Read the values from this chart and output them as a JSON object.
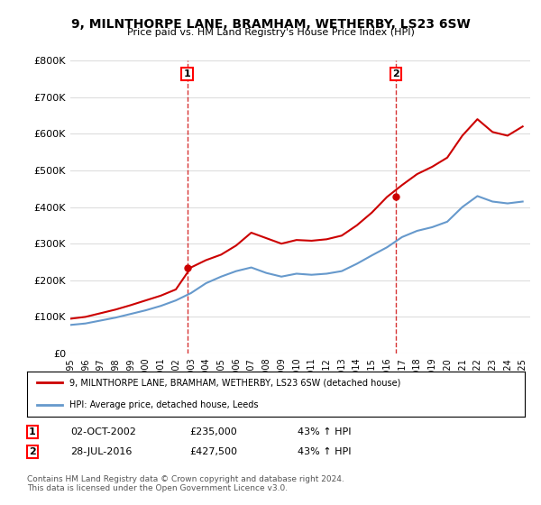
{
  "title": "9, MILNTHORPE LANE, BRAMHAM, WETHERBY, LS23 6SW",
  "subtitle": "Price paid vs. HM Land Registry's House Price Index (HPI)",
  "xlabel": "",
  "ylabel": "",
  "ylim": [
    0,
    800000
  ],
  "yticks": [
    0,
    100000,
    200000,
    300000,
    400000,
    500000,
    600000,
    700000,
    800000
  ],
  "ytick_labels": [
    "£0",
    "£100K",
    "£200K",
    "£300K",
    "£400K",
    "£500K",
    "£600K",
    "£700K",
    "£800K"
  ],
  "xlim_start": 1995.0,
  "xlim_end": 2025.5,
  "sale1_x": 2002.75,
  "sale1_y": 235000,
  "sale1_label": "1",
  "sale2_x": 2016.57,
  "sale2_y": 427500,
  "sale2_label": "2",
  "hpi_color": "#6699cc",
  "price_color": "#cc0000",
  "legend_price_label": "9, MILNTHORPE LANE, BRAMHAM, WETHERBY, LS23 6SW (detached house)",
  "legend_hpi_label": "HPI: Average price, detached house, Leeds",
  "table_row1": [
    "1",
    "02-OCT-2002",
    "£235,000",
    "43% ↑ HPI"
  ],
  "table_row2": [
    "2",
    "28-JUL-2016",
    "£427,500",
    "43% ↑ HPI"
  ],
  "footer": "Contains HM Land Registry data © Crown copyright and database right 2024.\nThis data is licensed under the Open Government Licence v3.0.",
  "bg_color": "#ffffff",
  "plot_bg_color": "#ffffff",
  "grid_color": "#dddddd",
  "hpi_years": [
    1995,
    1996,
    1997,
    1998,
    1999,
    2000,
    2001,
    2002,
    2003,
    2004,
    2005,
    2006,
    2007,
    2008,
    2009,
    2010,
    2011,
    2012,
    2013,
    2014,
    2015,
    2016,
    2017,
    2018,
    2019,
    2020,
    2021,
    2022,
    2023,
    2024,
    2025
  ],
  "hpi_values": [
    78000,
    82000,
    90000,
    98000,
    108000,
    118000,
    130000,
    145000,
    165000,
    192000,
    210000,
    225000,
    235000,
    220000,
    210000,
    218000,
    215000,
    218000,
    225000,
    245000,
    268000,
    290000,
    318000,
    335000,
    345000,
    360000,
    400000,
    430000,
    415000,
    410000,
    415000
  ],
  "price_years": [
    1995,
    1996,
    1997,
    1998,
    1999,
    2000,
    2001,
    2002,
    2003,
    2004,
    2005,
    2006,
    2007,
    2008,
    2009,
    2010,
    2011,
    2012,
    2013,
    2014,
    2015,
    2016,
    2017,
    2018,
    2019,
    2020,
    2021,
    2022,
    2023,
    2024,
    2025
  ],
  "price_values": [
    95000,
    100000,
    110000,
    120000,
    132000,
    145000,
    158000,
    175000,
    235000,
    255000,
    270000,
    295000,
    330000,
    315000,
    300000,
    310000,
    308000,
    312000,
    322000,
    350000,
    385000,
    427500,
    460000,
    490000,
    510000,
    535000,
    595000,
    640000,
    605000,
    595000,
    620000
  ]
}
